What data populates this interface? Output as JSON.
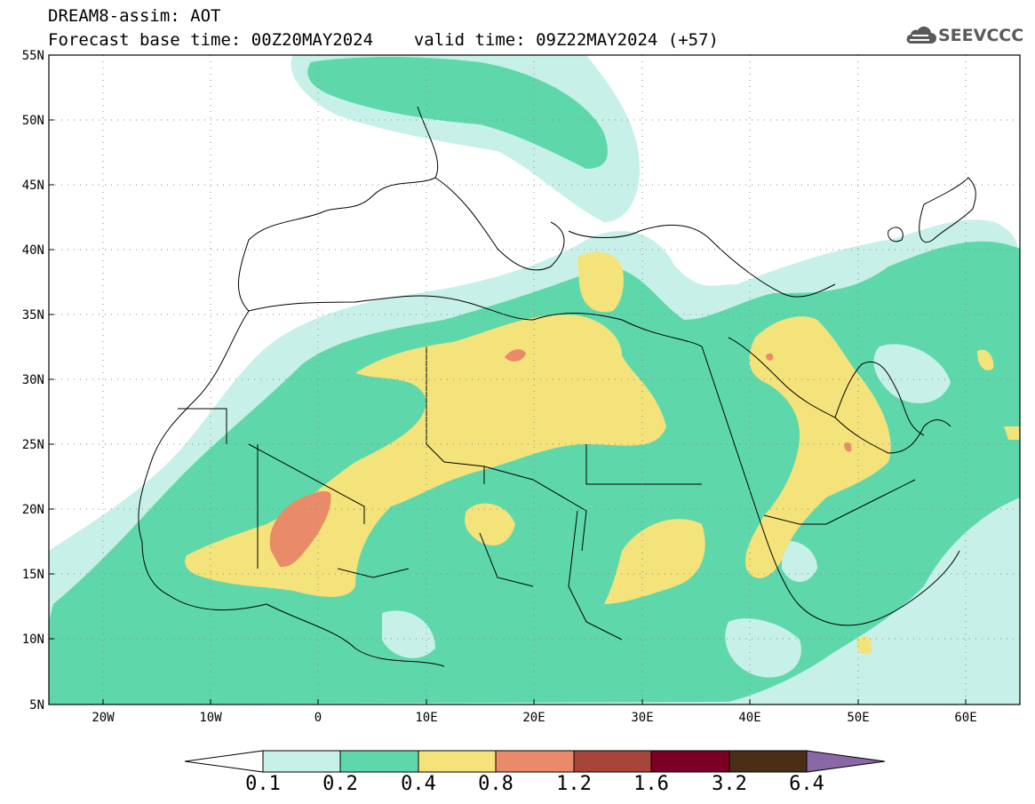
{
  "header": {
    "product_title": "DREAM8-assim: AOT",
    "forecast_base": "Forecast base time: 00Z20MAY2024",
    "valid_time": "valid time: 09Z22MAY2024 (+57)"
  },
  "logo": {
    "text": "SEEVCCC",
    "icon": "cloud-icon"
  },
  "map": {
    "lat_range": [
      5,
      55
    ],
    "lon_range": [
      -25,
      65
    ],
    "lat_labels": [
      "55N",
      "50N",
      "45N",
      "40N",
      "35N",
      "30N",
      "25N",
      "20N",
      "15N",
      "10N",
      "5N"
    ],
    "lon_labels": [
      "20W",
      "10W",
      "0",
      "10E",
      "20E",
      "30E",
      "40E",
      "50E",
      "60E"
    ],
    "gridlines": "dotted"
  },
  "colorbar": {
    "levels": [
      "0.1",
      "0.2",
      "0.4",
      "0.8",
      "1.2",
      "1.6",
      "3.2",
      "6.4"
    ],
    "colors": [
      "#ffffff",
      "#c6f0e8",
      "#5ed8aa",
      "#f4e27a",
      "#e98b68",
      "#a8453a",
      "#7c0026",
      "#4a2e18",
      "#8a68a8"
    ]
  }
}
